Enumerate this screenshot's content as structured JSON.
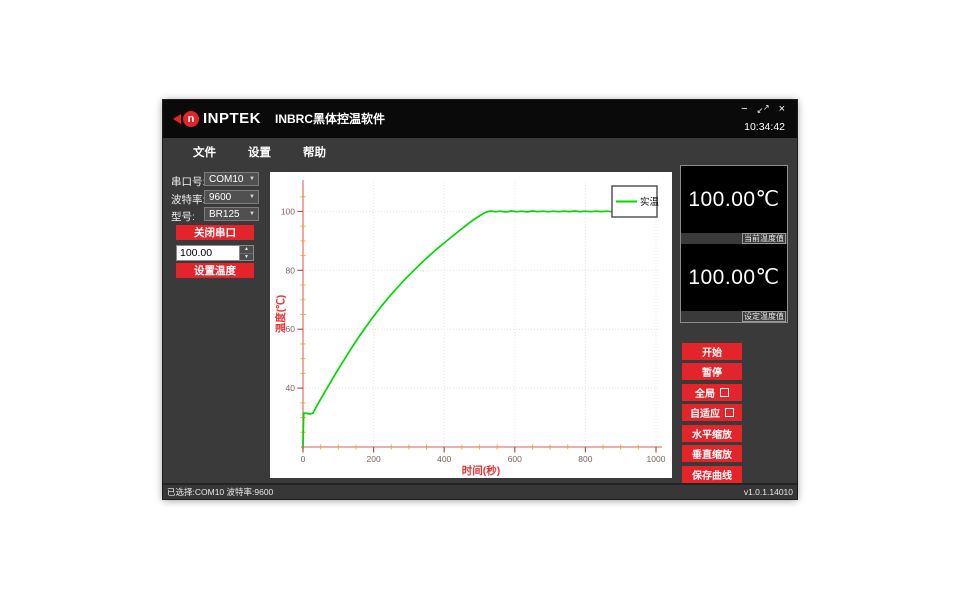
{
  "window": {
    "brand": "INPTEK",
    "brand_icon_letter": "n",
    "title": "INBRC黑体控温软件",
    "time": "10:34:42",
    "controls": {
      "minimize": "−",
      "restore_ne": "↗",
      "restore_sw": "↙",
      "close": "×"
    }
  },
  "menu": {
    "items": [
      {
        "label": "文件"
      },
      {
        "label": "设置"
      },
      {
        "label": "帮助"
      }
    ]
  },
  "left_panel": {
    "fields": [
      {
        "label": "串口号:",
        "value": "COM10"
      },
      {
        "label": "波特率:",
        "value": "9600"
      },
      {
        "label": "型号:",
        "value": "BR125"
      }
    ],
    "close_port_button": "关闭串口",
    "temperature_input": "100.00",
    "set_temp_button": "设置温度",
    "spin_up": "▲",
    "spin_down": "▼",
    "combo_arrow": "▼"
  },
  "displays": {
    "current": {
      "value": "100.00℃",
      "label": "当前温度值"
    },
    "setpoint": {
      "value": "100.00℃",
      "label": "设定温度值"
    }
  },
  "right_buttons": [
    {
      "label": "开始",
      "has_checkbox": false
    },
    {
      "label": "暂停",
      "has_checkbox": false
    },
    {
      "label": "全局",
      "has_checkbox": true
    },
    {
      "label": "自适应",
      "has_checkbox": true
    },
    {
      "label": "水平缩放",
      "has_checkbox": false
    },
    {
      "label": "垂直缩放",
      "has_checkbox": false
    },
    {
      "label": "保存曲线",
      "has_checkbox": false
    }
  ],
  "status_bar": {
    "left": "已选择:COM10 波特率:9600",
    "right": "v1.0.1.14010"
  },
  "colors": {
    "accent_red": "#e3242b",
    "curve_green": "#00d800",
    "axis_pink": "#f08f8f",
    "major_tick": "#cc4444",
    "minor_tick": "#f5a623",
    "tick_label": "#7d6464",
    "axis_title": "#e93535",
    "grid": "#e4e4e4"
  },
  "chart_data": {
    "type": "line",
    "title": "",
    "xlabel": "时间(秒)",
    "ylabel": "温度(℃)",
    "xlim": [
      0,
      1010
    ],
    "ylim": [
      20,
      110
    ],
    "x_ticks": [
      0,
      200,
      400,
      600,
      800,
      1000
    ],
    "y_ticks": [
      40,
      60,
      80,
      100
    ],
    "x_minor_step": 50,
    "y_minor_step": 5,
    "grid": true,
    "legend_position": "top-right",
    "legend": [
      {
        "label": "实温",
        "color": "#00d800"
      }
    ],
    "series": [
      {
        "name": "实温",
        "color": "#00d800",
        "points": [
          [
            0,
            20
          ],
          [
            2,
            31.5
          ],
          [
            10,
            31.4
          ],
          [
            20,
            31.2
          ],
          [
            28,
            31.5
          ],
          [
            35,
            33
          ],
          [
            45,
            35.2
          ],
          [
            60,
            38.3
          ],
          [
            75,
            41.4
          ],
          [
            90,
            44.5
          ],
          [
            105,
            47.4
          ],
          [
            120,
            50.3
          ],
          [
            140,
            54.1
          ],
          [
            160,
            57.7
          ],
          [
            180,
            61.1
          ],
          [
            200,
            64.4
          ],
          [
            220,
            67.5
          ],
          [
            240,
            70.4
          ],
          [
            260,
            73.2
          ],
          [
            280,
            75.8
          ],
          [
            300,
            78.3
          ],
          [
            320,
            80.7
          ],
          [
            340,
            83.0
          ],
          [
            360,
            85.2
          ],
          [
            380,
            87.3
          ],
          [
            400,
            89.3
          ],
          [
            420,
            91.3
          ],
          [
            440,
            93.2
          ],
          [
            460,
            95.1
          ],
          [
            480,
            96.9
          ],
          [
            495,
            98.1
          ],
          [
            510,
            99.2
          ],
          [
            520,
            99.8
          ],
          [
            532,
            100.2
          ],
          [
            545,
            99.9
          ],
          [
            560,
            100.1
          ],
          [
            575,
            99.8
          ],
          [
            590,
            100.15
          ],
          [
            605,
            99.9
          ],
          [
            620,
            100.1
          ],
          [
            635,
            99.85
          ],
          [
            650,
            100.15
          ],
          [
            665,
            99.9
          ],
          [
            680,
            100.1
          ],
          [
            695,
            99.9
          ],
          [
            710,
            100.1
          ],
          [
            725,
            99.9
          ],
          [
            740,
            100.1
          ],
          [
            755,
            99.95
          ],
          [
            770,
            100.15
          ],
          [
            785,
            99.9
          ],
          [
            800,
            100.1
          ],
          [
            815,
            99.9
          ],
          [
            830,
            100.1
          ],
          [
            845,
            99.95
          ],
          [
            860,
            100.1
          ],
          [
            875,
            99.9
          ],
          [
            890,
            100.1
          ],
          [
            905,
            99.95
          ],
          [
            920,
            100.1
          ],
          [
            935,
            99.9
          ],
          [
            950,
            100.1
          ],
          [
            965,
            99.95
          ],
          [
            980,
            100.1
          ],
          [
            1000,
            100
          ]
        ]
      }
    ]
  }
}
